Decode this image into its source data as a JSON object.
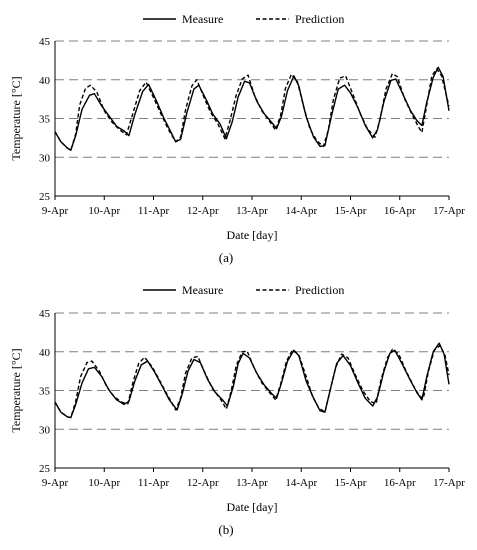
{
  "chart_data": [
    {
      "type": "line",
      "panel_label": "(a)",
      "xlabel": "Date [day]",
      "ylabel": "Temperature [°C]",
      "x_ticks": [
        "9-Apr",
        "10-Apr",
        "11-Apr",
        "12-Apr",
        "13-Apr",
        "14-Apr",
        "15-Apr",
        "16-Apr",
        "17-Apr"
      ],
      "y_ticks": [
        25,
        30,
        35,
        40,
        45
      ],
      "xlim": [
        9,
        17
      ],
      "ylim": [
        25,
        45
      ],
      "grid": "horizontal-dashed",
      "legend": "top-center",
      "series": [
        {
          "name": "Measure",
          "style": "solid",
          "points": [
            [
              9.0,
              33.3
            ],
            [
              9.12,
              32.0
            ],
            [
              9.25,
              31.2
            ],
            [
              9.32,
              30.9
            ],
            [
              9.42,
              32.8
            ],
            [
              9.55,
              36.2
            ],
            [
              9.7,
              38.0
            ],
            [
              9.8,
              38.2
            ],
            [
              9.95,
              36.6
            ],
            [
              10.1,
              35.3
            ],
            [
              10.25,
              34.0
            ],
            [
              10.4,
              33.4
            ],
            [
              10.5,
              32.8
            ],
            [
              10.62,
              35.5
            ],
            [
              10.78,
              38.5
            ],
            [
              10.9,
              39.4
            ],
            [
              11.05,
              37.4
            ],
            [
              11.2,
              35.2
            ],
            [
              11.35,
              33.3
            ],
            [
              11.45,
              32.0
            ],
            [
              11.55,
              32.3
            ],
            [
              11.68,
              35.8
            ],
            [
              11.82,
              38.8
            ],
            [
              11.92,
              39.3
            ],
            [
              12.08,
              37.3
            ],
            [
              12.2,
              35.6
            ],
            [
              12.35,
              34.3
            ],
            [
              12.48,
              32.4
            ],
            [
              12.6,
              34.6
            ],
            [
              12.72,
              37.8
            ],
            [
              12.85,
              39.8
            ],
            [
              12.95,
              39.6
            ],
            [
              13.1,
              37.2
            ],
            [
              13.25,
              35.6
            ],
            [
              13.4,
              34.5
            ],
            [
              13.5,
              33.7
            ],
            [
              13.6,
              35.3
            ],
            [
              13.72,
              38.6
            ],
            [
              13.85,
              40.5
            ],
            [
              13.95,
              39.2
            ],
            [
              14.1,
              35.2
            ],
            [
              14.25,
              32.6
            ],
            [
              14.38,
              31.4
            ],
            [
              14.48,
              31.5
            ],
            [
              14.62,
              35.5
            ],
            [
              14.75,
              38.8
            ],
            [
              14.88,
              39.3
            ],
            [
              15.0,
              38.3
            ],
            [
              15.15,
              36.4
            ],
            [
              15.3,
              34.1
            ],
            [
              15.45,
              32.5
            ],
            [
              15.55,
              33.6
            ],
            [
              15.68,
              37.2
            ],
            [
              15.82,
              39.9
            ],
            [
              15.92,
              40.1
            ],
            [
              16.08,
              37.9
            ],
            [
              16.22,
              36.0
            ],
            [
              16.35,
              34.7
            ],
            [
              16.45,
              34.1
            ],
            [
              16.55,
              37.1
            ],
            [
              16.68,
              40.3
            ],
            [
              16.78,
              41.6
            ],
            [
              16.88,
              40.4
            ],
            [
              17.0,
              36.0
            ]
          ]
        },
        {
          "name": "Prediction",
          "style": "dashed",
          "points": [
            [
              9.0,
              33.3
            ],
            [
              9.12,
              32.0
            ],
            [
              9.25,
              31.2
            ],
            [
              9.32,
              30.9
            ],
            [
              9.42,
              33.0
            ],
            [
              9.5,
              36.7
            ],
            [
              9.62,
              38.9
            ],
            [
              9.72,
              39.3
            ],
            [
              9.85,
              38.4
            ],
            [
              10.0,
              36.0
            ],
            [
              10.15,
              34.6
            ],
            [
              10.3,
              33.6
            ],
            [
              10.45,
              32.9
            ],
            [
              10.58,
              35.6
            ],
            [
              10.72,
              38.6
            ],
            [
              10.85,
              39.7
            ],
            [
              11.0,
              37.7
            ],
            [
              11.15,
              35.6
            ],
            [
              11.3,
              33.6
            ],
            [
              11.45,
              32.0
            ],
            [
              11.55,
              32.6
            ],
            [
              11.65,
              36.1
            ],
            [
              11.78,
              39.2
            ],
            [
              11.88,
              40.0
            ],
            [
              12.0,
              38.1
            ],
            [
              12.15,
              35.9
            ],
            [
              12.3,
              34.4
            ],
            [
              12.45,
              32.4
            ],
            [
              12.55,
              34.6
            ],
            [
              12.68,
              38.0
            ],
            [
              12.8,
              40.1
            ],
            [
              12.92,
              40.6
            ],
            [
              13.05,
              38.0
            ],
            [
              13.2,
              36.0
            ],
            [
              13.35,
              34.7
            ],
            [
              13.48,
              33.5
            ],
            [
              13.58,
              35.4
            ],
            [
              13.68,
              38.9
            ],
            [
              13.8,
              40.7
            ],
            [
              13.92,
              39.8
            ],
            [
              14.05,
              36.5
            ],
            [
              14.18,
              33.6
            ],
            [
              14.32,
              32.1
            ],
            [
              14.45,
              31.4
            ],
            [
              14.55,
              33.5
            ],
            [
              14.65,
              37.4
            ],
            [
              14.78,
              40.2
            ],
            [
              14.9,
              40.5
            ],
            [
              15.05,
              38.1
            ],
            [
              15.2,
              35.6
            ],
            [
              15.35,
              33.6
            ],
            [
              15.5,
              32.6
            ],
            [
              15.6,
              34.9
            ],
            [
              15.72,
              38.8
            ],
            [
              15.85,
              40.8
            ],
            [
              15.95,
              40.4
            ],
            [
              16.1,
              37.5
            ],
            [
              16.25,
              35.5
            ],
            [
              16.38,
              33.9
            ],
            [
              16.45,
              33.2
            ],
            [
              16.55,
              36.8
            ],
            [
              16.65,
              40.5
            ],
            [
              16.75,
              41.4
            ],
            [
              16.85,
              40.5
            ],
            [
              17.0,
              36.6
            ]
          ]
        }
      ]
    },
    {
      "type": "line",
      "panel_label": "(b)",
      "xlabel": "Date [day]",
      "ylabel": "Temperature [°C]",
      "x_ticks": [
        "9-Apr",
        "10-Apr",
        "11-Apr",
        "12-Apr",
        "13-Apr",
        "14-Apr",
        "15-Apr",
        "16-Apr",
        "17-Apr"
      ],
      "y_ticks": [
        25,
        30,
        35,
        40,
        45
      ],
      "xlim": [
        9,
        17
      ],
      "ylim": [
        25,
        45
      ],
      "grid": "horizontal-dashed",
      "legend": "top-center",
      "series": [
        {
          "name": "Measure",
          "style": "solid",
          "points": [
            [
              9.0,
              33.5
            ],
            [
              9.12,
              32.2
            ],
            [
              9.25,
              31.6
            ],
            [
              9.32,
              31.5
            ],
            [
              9.42,
              33.2
            ],
            [
              9.55,
              36.0
            ],
            [
              9.68,
              37.8
            ],
            [
              9.8,
              38.0
            ],
            [
              9.95,
              36.8
            ],
            [
              10.1,
              35.0
            ],
            [
              10.25,
              33.8
            ],
            [
              10.4,
              33.2
            ],
            [
              10.5,
              33.6
            ],
            [
              10.62,
              36.2
            ],
            [
              10.75,
              38.3
            ],
            [
              10.88,
              38.8
            ],
            [
              11.02,
              37.4
            ],
            [
              11.18,
              35.5
            ],
            [
              11.32,
              33.8
            ],
            [
              11.48,
              32.5
            ],
            [
              11.58,
              34.5
            ],
            [
              11.7,
              37.5
            ],
            [
              11.82,
              39.0
            ],
            [
              11.95,
              38.6
            ],
            [
              12.1,
              36.4
            ],
            [
              12.25,
              34.8
            ],
            [
              12.4,
              33.8
            ],
            [
              12.5,
              33.0
            ],
            [
              12.62,
              35.5
            ],
            [
              12.72,
              38.5
            ],
            [
              12.82,
              39.8
            ],
            [
              12.95,
              39.2
            ],
            [
              13.1,
              37.2
            ],
            [
              13.25,
              35.7
            ],
            [
              13.4,
              34.6
            ],
            [
              13.5,
              34.0
            ],
            [
              13.6,
              36.0
            ],
            [
              13.72,
              38.8
            ],
            [
              13.85,
              40.2
            ],
            [
              13.95,
              39.5
            ],
            [
              14.1,
              36.2
            ],
            [
              14.25,
              34.0
            ],
            [
              14.38,
              32.4
            ],
            [
              14.48,
              32.2
            ],
            [
              14.6,
              35.4
            ],
            [
              14.72,
              38.5
            ],
            [
              14.85,
              39.5
            ],
            [
              15.0,
              38.2
            ],
            [
              15.15,
              36.0
            ],
            [
              15.3,
              34.0
            ],
            [
              15.45,
              33.0
            ],
            [
              15.55,
              34.2
            ],
            [
              15.68,
              37.5
            ],
            [
              15.8,
              39.8
            ],
            [
              15.9,
              40.2
            ],
            [
              16.05,
              38.4
            ],
            [
              16.2,
              36.5
            ],
            [
              16.35,
              34.7
            ],
            [
              16.45,
              33.8
            ],
            [
              16.55,
              36.8
            ],
            [
              16.68,
              40.0
            ],
            [
              16.8,
              41.1
            ],
            [
              16.9,
              39.7
            ],
            [
              17.0,
              35.8
            ]
          ]
        },
        {
          "name": "Prediction",
          "style": "dashed",
          "points": [
            [
              9.0,
              33.5
            ],
            [
              9.12,
              32.2
            ],
            [
              9.25,
              31.6
            ],
            [
              9.32,
              31.5
            ],
            [
              9.42,
              33.6
            ],
            [
              9.52,
              36.8
            ],
            [
              9.65,
              38.6
            ],
            [
              9.75,
              38.8
            ],
            [
              9.9,
              37.5
            ],
            [
              10.05,
              35.5
            ],
            [
              10.2,
              34.2
            ],
            [
              10.35,
              33.5
            ],
            [
              10.48,
              33.3
            ],
            [
              10.58,
              36.0
            ],
            [
              10.7,
              38.5
            ],
            [
              10.82,
              39.3
            ],
            [
              10.98,
              38.0
            ],
            [
              11.15,
              36.0
            ],
            [
              11.3,
              34.2
            ],
            [
              11.45,
              32.5
            ],
            [
              11.55,
              34.0
            ],
            [
              11.65,
              37.2
            ],
            [
              11.78,
              39.2
            ],
            [
              11.9,
              39.4
            ],
            [
              12.05,
              37.2
            ],
            [
              12.2,
              35.2
            ],
            [
              12.35,
              34.0
            ],
            [
              12.48,
              32.6
            ],
            [
              12.58,
              35.0
            ],
            [
              12.68,
              38.2
            ],
            [
              12.8,
              40.0
            ],
            [
              12.9,
              40.1
            ],
            [
              13.05,
              37.8
            ],
            [
              13.2,
              36.0
            ],
            [
              13.35,
              34.8
            ],
            [
              13.48,
              33.8
            ],
            [
              13.58,
              35.8
            ],
            [
              13.7,
              38.8
            ],
            [
              13.82,
              40.2
            ],
            [
              13.95,
              39.6
            ],
            [
              14.1,
              36.8
            ],
            [
              14.22,
              34.4
            ],
            [
              14.35,
              32.8
            ],
            [
              14.48,
              32.2
            ],
            [
              14.58,
              34.8
            ],
            [
              14.7,
              38.0
            ],
            [
              14.82,
              39.7
            ],
            [
              14.95,
              39.2
            ],
            [
              15.1,
              37.0
            ],
            [
              15.25,
              35.0
            ],
            [
              15.4,
              33.6
            ],
            [
              15.52,
              33.3
            ],
            [
              15.62,
              36.4
            ],
            [
              15.75,
              39.2
            ],
            [
              15.85,
              40.3
            ],
            [
              15.98,
              39.7
            ],
            [
              16.12,
              37.6
            ],
            [
              16.28,
              35.6
            ],
            [
              16.4,
              34.3
            ],
            [
              16.48,
              34.0
            ],
            [
              16.58,
              37.4
            ],
            [
              16.7,
              40.2
            ],
            [
              16.82,
              40.8
            ],
            [
              16.92,
              39.5
            ],
            [
              17.0,
              37.0
            ]
          ]
        }
      ]
    }
  ]
}
